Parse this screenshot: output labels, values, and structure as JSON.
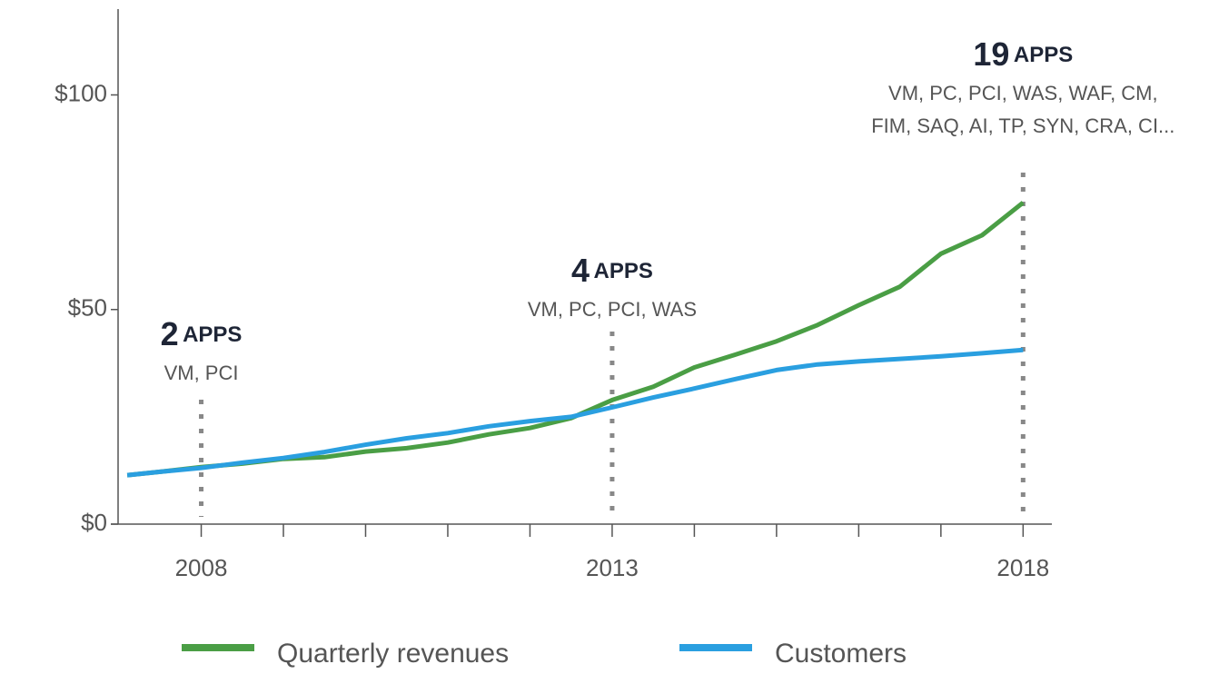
{
  "chart_data": {
    "type": "line",
    "x": [
      2007.1,
      2007.5,
      2008,
      2008.5,
      2009,
      2009.5,
      2010,
      2010.5,
      2011,
      2011.5,
      2012,
      2012.5,
      2013,
      2013.5,
      2014,
      2014.5,
      2015,
      2015.5,
      2016,
      2016.5,
      2017,
      2017.5,
      2018
    ],
    "series": [
      {
        "name": "Quarterly revenues",
        "color": "#4a9e45",
        "values": [
          11.4,
          12.2,
          13.3,
          14.1,
          15.2,
          15.6,
          16.9,
          17.7,
          19,
          20.9,
          22.4,
          24.7,
          28.9,
          32,
          36.5,
          39.5,
          42.6,
          46.4,
          51,
          55.3,
          63,
          67.3,
          74.9
        ]
      },
      {
        "name": "Customers",
        "color": "#2a9fe0",
        "values": [
          11.4,
          12.2,
          13.1,
          14.3,
          15.4,
          16.8,
          18.5,
          20,
          21.2,
          22.8,
          24,
          25,
          27.2,
          29.5,
          31.6,
          33.8,
          35.9,
          37.2,
          37.9,
          38.5,
          39.1,
          39.8,
          40.6
        ]
      }
    ],
    "xlim": [
      2006.9,
      2018.35
    ],
    "xticks": [
      2008,
      2013,
      2018
    ],
    "xminor_ticks": [
      2009,
      2010,
      2011,
      2012,
      2014,
      2015,
      2016,
      2017
    ],
    "ylim": [
      0,
      120
    ],
    "yticks": [
      {
        "value": 0,
        "label": "$0"
      },
      {
        "value": 50,
        "label": "$50"
      },
      {
        "value": 100,
        "label": "$100"
      }
    ],
    "legend": "bottom",
    "annotations": [
      {
        "x": 2008,
        "count": "2",
        "unit": "APPS",
        "detail": [
          "VM, PCI"
        ]
      },
      {
        "x": 2013,
        "count": "4",
        "unit": "APPS",
        "detail": [
          "VM, PC, PCI, WAS"
        ]
      },
      {
        "x": 2018,
        "count": "19",
        "unit": "APPS",
        "detail": [
          "VM, PC, PCI, WAS, WAF, CM,",
          "FIM, SAQ, AI, TP, SYN, CRA, CI..."
        ]
      }
    ]
  }
}
